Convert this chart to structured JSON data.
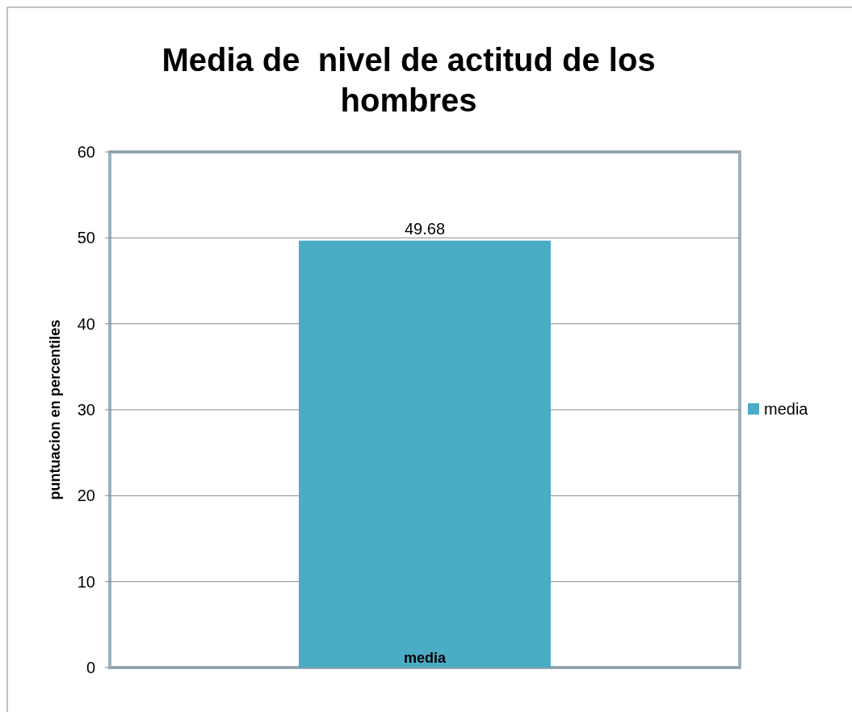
{
  "chart_data": {
    "type": "bar",
    "title": "Media de  nivel de actitud de los hombres",
    "ylabel": "puntuacion en percentiles",
    "categories": [
      "media"
    ],
    "series": [
      {
        "name": "media",
        "color": "#4bacc6",
        "values": [
          49.68
        ]
      }
    ],
    "ylim": [
      0,
      60
    ],
    "yticks": [
      0,
      10,
      20,
      30,
      40,
      50,
      60
    ],
    "grid": "y",
    "legend": "right",
    "data_labels": true
  }
}
